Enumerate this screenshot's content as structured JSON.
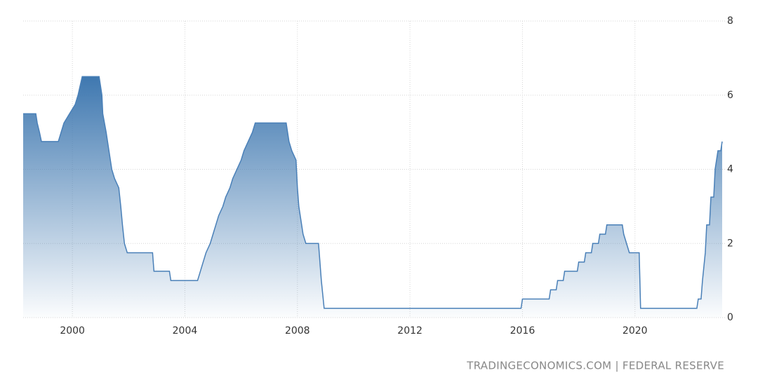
{
  "chart_data": {
    "type": "area",
    "source": "TRADINGECONOMICS.COM | FEDERAL RESERVE",
    "color": "#4a80b8",
    "grid": true,
    "xlim": [
      1998.25,
      2023.2
    ],
    "xticks": [
      2000,
      2004,
      2008,
      2012,
      2016,
      2020
    ],
    "ylim": [
      0,
      8
    ],
    "yticks": [
      0,
      2,
      4,
      6,
      8
    ],
    "x": [
      1998.25,
      1998.7,
      1998.75,
      1998.83,
      1998.9,
      1999.5,
      1999.6,
      1999.7,
      1999.9,
      2000.1,
      2000.2,
      2000.35,
      2000.95,
      2001.05,
      2001.08,
      2001.2,
      2001.3,
      2001.4,
      2001.5,
      2001.65,
      2001.72,
      2001.78,
      2001.85,
      2001.95,
      2002.85,
      2002.9,
      2003.45,
      2003.5,
      2004.45,
      2004.55,
      2004.65,
      2004.75,
      2004.9,
      2005.0,
      2005.1,
      2005.2,
      2005.35,
      2005.45,
      2005.6,
      2005.7,
      2005.85,
      2006.0,
      2006.1,
      2006.25,
      2006.4,
      2006.5,
      2007.6,
      2007.7,
      2007.8,
      2007.95,
      2008.0,
      2008.05,
      2008.2,
      2008.3,
      2008.75,
      2008.8,
      2008.85,
      2008.95,
      2015.95,
      2016.0,
      2016.95,
      2017.0,
      2017.2,
      2017.25,
      2017.45,
      2017.5,
      2017.95,
      2018.0,
      2018.2,
      2018.25,
      2018.45,
      2018.5,
      2018.7,
      2018.75,
      2018.95,
      2019.0,
      2019.55,
      2019.6,
      2019.7,
      2019.8,
      2020.15,
      2020.2,
      2022.2,
      2022.25,
      2022.35,
      2022.4,
      2022.5,
      2022.55,
      2022.65,
      2022.7,
      2022.8,
      2022.85,
      2022.95,
      2023.05,
      2023.1
    ],
    "values": [
      5.5,
      5.5,
      5.25,
      5.0,
      4.75,
      4.75,
      5.0,
      5.25,
      5.5,
      5.75,
      6.0,
      6.5,
      6.5,
      6.0,
      5.5,
      5.0,
      4.5,
      4.0,
      3.75,
      3.5,
      3.0,
      2.5,
      2.0,
      1.75,
      1.75,
      1.25,
      1.25,
      1.0,
      1.0,
      1.25,
      1.5,
      1.75,
      2.0,
      2.25,
      2.5,
      2.75,
      3.0,
      3.25,
      3.5,
      3.75,
      4.0,
      4.25,
      4.5,
      4.75,
      5.0,
      5.25,
      5.25,
      4.75,
      4.5,
      4.25,
      3.5,
      3.0,
      2.25,
      2.0,
      2.0,
      1.5,
      1.0,
      0.25,
      0.25,
      0.5,
      0.5,
      0.75,
      0.75,
      1.0,
      1.0,
      1.25,
      1.25,
      1.5,
      1.5,
      1.75,
      1.75,
      2.0,
      2.0,
      2.25,
      2.25,
      2.5,
      2.5,
      2.25,
      2.0,
      1.75,
      1.75,
      0.25,
      0.25,
      0.5,
      0.5,
      1.0,
      1.75,
      2.5,
      2.5,
      3.25,
      3.25,
      4.0,
      4.5,
      4.5,
      4.75
    ]
  }
}
